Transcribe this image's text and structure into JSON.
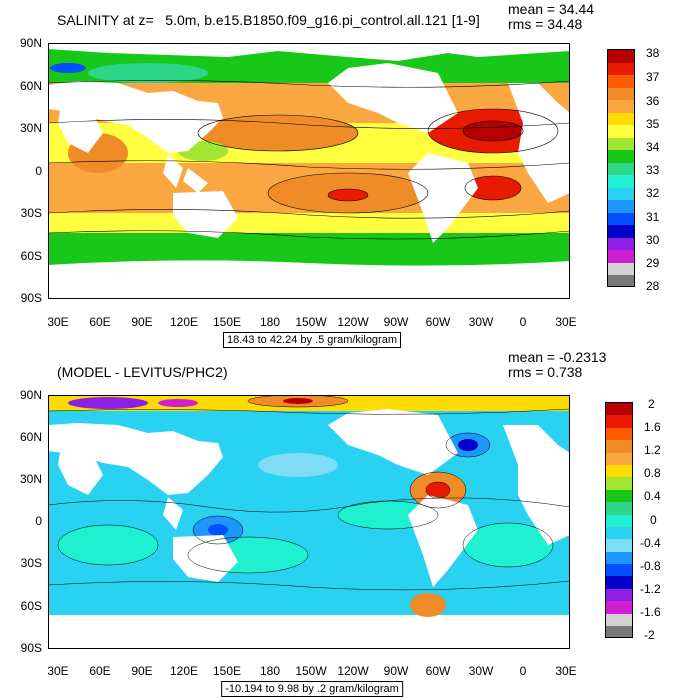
{
  "top_panel": {
    "title": "SALINITY at z=   5.0m, b.e15.B1850.f09_g16.pi_control.all.121 [1-9]",
    "mean": "mean = 34.44",
    "rms": "rms = 34.48",
    "info": "18.43 to 42.24 by .5 gram/kilogram",
    "lat_labels": [
      "90N",
      "60N",
      "30N",
      "0",
      "30S",
      "60S",
      "90S"
    ],
    "lon_labels": [
      "30E",
      "60E",
      "90E",
      "120E",
      "150E",
      "180",
      "150W",
      "120W",
      "90W",
      "60W",
      "30W",
      "0",
      "30E"
    ],
    "colorbar_labels": [
      "38",
      "37",
      "36",
      "35",
      "34",
      "33",
      "32",
      "31",
      "30",
      "29",
      "28"
    ],
    "colorbar_colors": [
      "#b40000",
      "#e81a00",
      "#ff5a00",
      "#f08c28",
      "#fba741",
      "#ffdc00",
      "#ffff40",
      "#a0e632",
      "#18c818",
      "#2ed68a",
      "#1ef0d0",
      "#28d2f0",
      "#1e96ff",
      "#0050ff",
      "#0000c8",
      "#8c1ee6",
      "#d21ed2",
      "#d2d2d2",
      "#787878"
    ]
  },
  "bottom_panel": {
    "title": "(MODEL - LEVITUS/PHC2)",
    "mean": "mean = -0.2313",
    "rms": "rms = 0.738",
    "info": "-10.194 to 9.98 by .2 gram/kilogram",
    "lat_labels": [
      "90N",
      "60N",
      "30N",
      "0",
      "30S",
      "60S",
      "90S"
    ],
    "lon_labels": [
      "30E",
      "60E",
      "90E",
      "120E",
      "150E",
      "180",
      "150W",
      "120W",
      "90W",
      "60W",
      "30W",
      "0",
      "30E"
    ],
    "colorbar_labels": [
      "2",
      "1.6",
      "1.2",
      "0.8",
      "0.4",
      "0",
      "-0.4",
      "-0.8",
      "-1.2",
      "-1.6",
      "-2"
    ],
    "colorbar_colors": [
      "#b40000",
      "#e81a00",
      "#ff5a00",
      "#f08c28",
      "#fba741",
      "#ffdc00",
      "#a0e632",
      "#18c818",
      "#2ed68a",
      "#1ef0d0",
      "#28d2f0",
      "#7fdcf5",
      "#1e96ff",
      "#0050ff",
      "#0000c8",
      "#8c1ee6",
      "#d21ed2",
      "#d2d2d2",
      "#787878"
    ]
  }
}
